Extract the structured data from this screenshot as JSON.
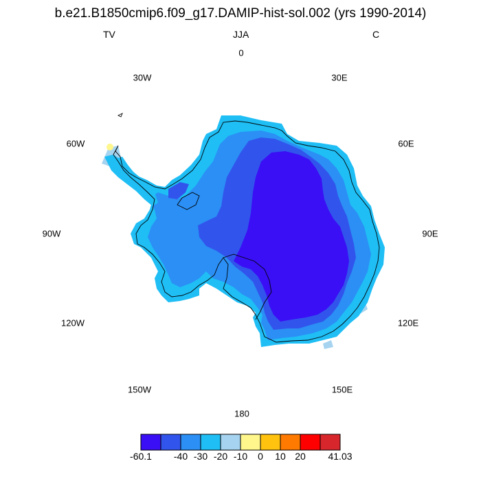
{
  "title": "b.e21.B1850cmip6.f09_g17.DAMIP-hist-sol.002 (yrs 1990-2014)",
  "subtitle_left": "TV",
  "subtitle_center": "JJA",
  "subtitle_right": "C",
  "longitude_labels": {
    "lon_0": "0",
    "lon_30e": "30E",
    "lon_60e": "60E",
    "lon_90e": "90E",
    "lon_120e": "120E",
    "lon_150e": "150E",
    "lon_180": "180",
    "lon_150w": "150W",
    "lon_120w": "120W",
    "lon_90w": "90W",
    "lon_60w": "60W",
    "lon_30w": "30W"
  },
  "colorbar": {
    "colors": [
      "#3a0ff5",
      "#3155ec",
      "#2b8ff5",
      "#1fbef5",
      "#a6d3ef",
      "#fff68c",
      "#ffc20e",
      "#ff7a00",
      "#ff0000",
      "#d7262c"
    ],
    "labels": [
      "-60.1",
      "-40",
      "-30",
      "-20",
      "-10",
      "0",
      "10",
      "20",
      "41.03"
    ]
  },
  "map_colors": {
    "level_lt_neg40": "#3a0ff5",
    "level_neg40_neg30": "#3155ec",
    "level_neg30_neg20": "#2b8ff5",
    "level_neg20_neg10": "#1fbef5",
    "level_neg10_0": "#a6d3ef",
    "level_0_10": "#fff68c"
  }
}
